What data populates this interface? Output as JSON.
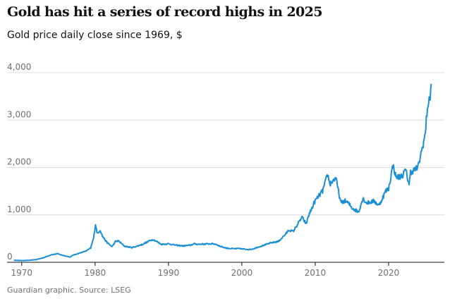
{
  "chart_data": {
    "type": "line",
    "title": "Gold has hit a series of record highs in 2025",
    "subtitle": "Gold price daily close since 1969, $",
    "xlabel": "",
    "ylabel": "",
    "xlim": [
      1968,
      2027.6
    ],
    "ylim": [
      0,
      4000
    ],
    "y_ticks": [
      0,
      1000,
      2000,
      3000,
      4000
    ],
    "y_tick_labels": [
      "0",
      "1,000",
      "2,000",
      "3,000",
      "4,000"
    ],
    "x_ticks": [
      1970,
      1980,
      1990,
      2000,
      2010,
      2020
    ],
    "x_tick_labels": [
      "1970",
      "1980",
      "1990",
      "2000",
      "2010",
      "2020"
    ],
    "grid": true,
    "series": [
      {
        "name": "Gold price",
        "color": "#1a8fd6",
        "x": [
          1969,
          1970,
          1971,
          1972,
          1973,
          1974,
          1974.9,
          1975.5,
          1976.6,
          1977,
          1978,
          1978.8,
          1979.4,
          1979.8,
          1980.05,
          1980.3,
          1980.7,
          1981,
          1981.6,
          1982.3,
          1982.8,
          1983.2,
          1984,
          1985,
          1985.5,
          1986.5,
          1987.5,
          1987.9,
          1988.5,
          1989,
          1990,
          1991,
          1992,
          1993,
          1993.5,
          1994,
          1995,
          1996,
          1996.5,
          1997,
          1998,
          1999,
          1999.8,
          2000,
          2001,
          2001.5,
          2002,
          2003,
          2004,
          2005,
          2006,
          2006.4,
          2007,
          2008.2,
          2008.8,
          2009,
          2010,
          2011,
          2011.7,
          2012,
          2012.8,
          2013.3,
          2013.5,
          2014,
          2014.5,
          2015,
          2015.9,
          2016.5,
          2017,
          2018,
          2018.7,
          2019,
          2019.6,
          2020,
          2020.6,
          2021,
          2021.5,
          2022,
          2022.3,
          2022.8,
          2023,
          2023.5,
          2024,
          2024.5,
          2025,
          2025.3,
          2025.6,
          2025.8
        ],
        "values": [
          42,
          36,
          41,
          58,
          97,
          159,
          180,
          150,
          110,
          150,
          200,
          240,
          300,
          520,
          800,
          600,
          680,
          550,
          420,
          330,
          440,
          450,
          340,
          310,
          330,
          380,
          460,
          480,
          430,
          380,
          390,
          360,
          345,
          360,
          390,
          380,
          385,
          390,
          380,
          340,
          295,
          285,
          290,
          280,
          270,
          280,
          310,
          360,
          410,
          440,
          600,
          680,
          650,
          950,
          800,
          950,
          1300,
          1500,
          1850,
          1650,
          1780,
          1400,
          1250,
          1300,
          1250,
          1150,
          1060,
          1350,
          1250,
          1290,
          1200,
          1300,
          1500,
          1550,
          2050,
          1800,
          1800,
          1850,
          1950,
          1650,
          1900,
          1950,
          2000,
          2350,
          2700,
          3300,
          3400,
          3750
        ]
      }
    ]
  },
  "source": "Guardian graphic. Source: LSEG"
}
